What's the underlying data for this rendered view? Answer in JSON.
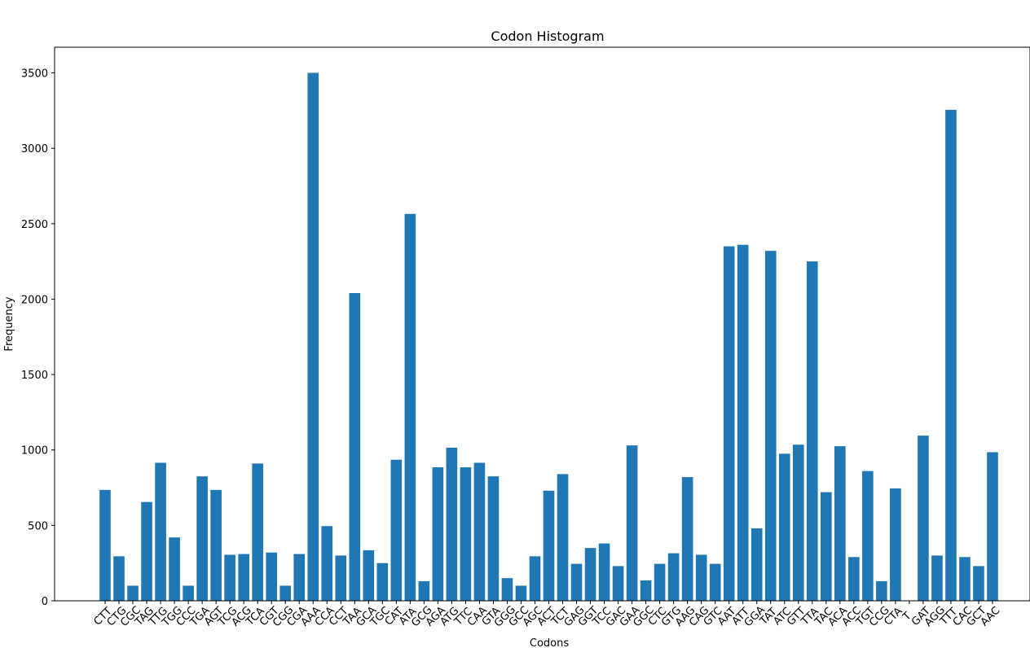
{
  "chart_data": {
    "type": "bar",
    "title": "Codon Histogram",
    "xlabel": "Codons",
    "ylabel": "Frequency",
    "ylim": [
      0,
      3670
    ],
    "yticks": [
      0,
      500,
      1000,
      1500,
      2000,
      2500,
      3000,
      3500
    ],
    "bar_color": "#1f77b4",
    "grid": false,
    "categories": [
      "CTT",
      "CTG",
      "CGC",
      "TAG",
      "TTG",
      "TGG",
      "CCC",
      "TGA",
      "AGT",
      "TCG",
      "ACG",
      "TCA",
      "CGT",
      "CGG",
      "CGA",
      "AAA",
      "CCA",
      "CCT",
      "TAA",
      "GCA",
      "TGC",
      "CAT",
      "ATA",
      "GCG",
      "AGA",
      "ATG",
      "TTC",
      "CAA",
      "GTA",
      "GGG",
      "GCC",
      "AGC",
      "ACT",
      "TCT",
      "GAG",
      "GGT",
      "TCC",
      "GAC",
      "GAA",
      "GGC",
      "CTC",
      "GTG",
      "AAG",
      "CAG",
      "GTC",
      "AAT",
      "ATT",
      "GGA",
      "TAT",
      "ATC",
      "GTT",
      "TTA",
      "TAC",
      "ACA",
      "ACC",
      "TGT",
      "CCG",
      "CTA",
      "T",
      "GAT",
      "AGG",
      "TTT",
      "CAC",
      "GCT",
      "AAC"
    ],
    "values": [
      735,
      295,
      100,
      655,
      915,
      420,
      100,
      825,
      735,
      305,
      310,
      910,
      320,
      100,
      310,
      3500,
      495,
      300,
      2040,
      335,
      250,
      935,
      2565,
      130,
      885,
      1015,
      885,
      915,
      825,
      150,
      100,
      295,
      730,
      840,
      245,
      350,
      380,
      230,
      1030,
      135,
      245,
      315,
      820,
      305,
      245,
      2350,
      2360,
      480,
      2320,
      975,
      1035,
      2250,
      720,
      1025,
      290,
      860,
      130,
      745,
      0,
      1095,
      300,
      3255,
      290,
      230,
      985
    ]
  }
}
